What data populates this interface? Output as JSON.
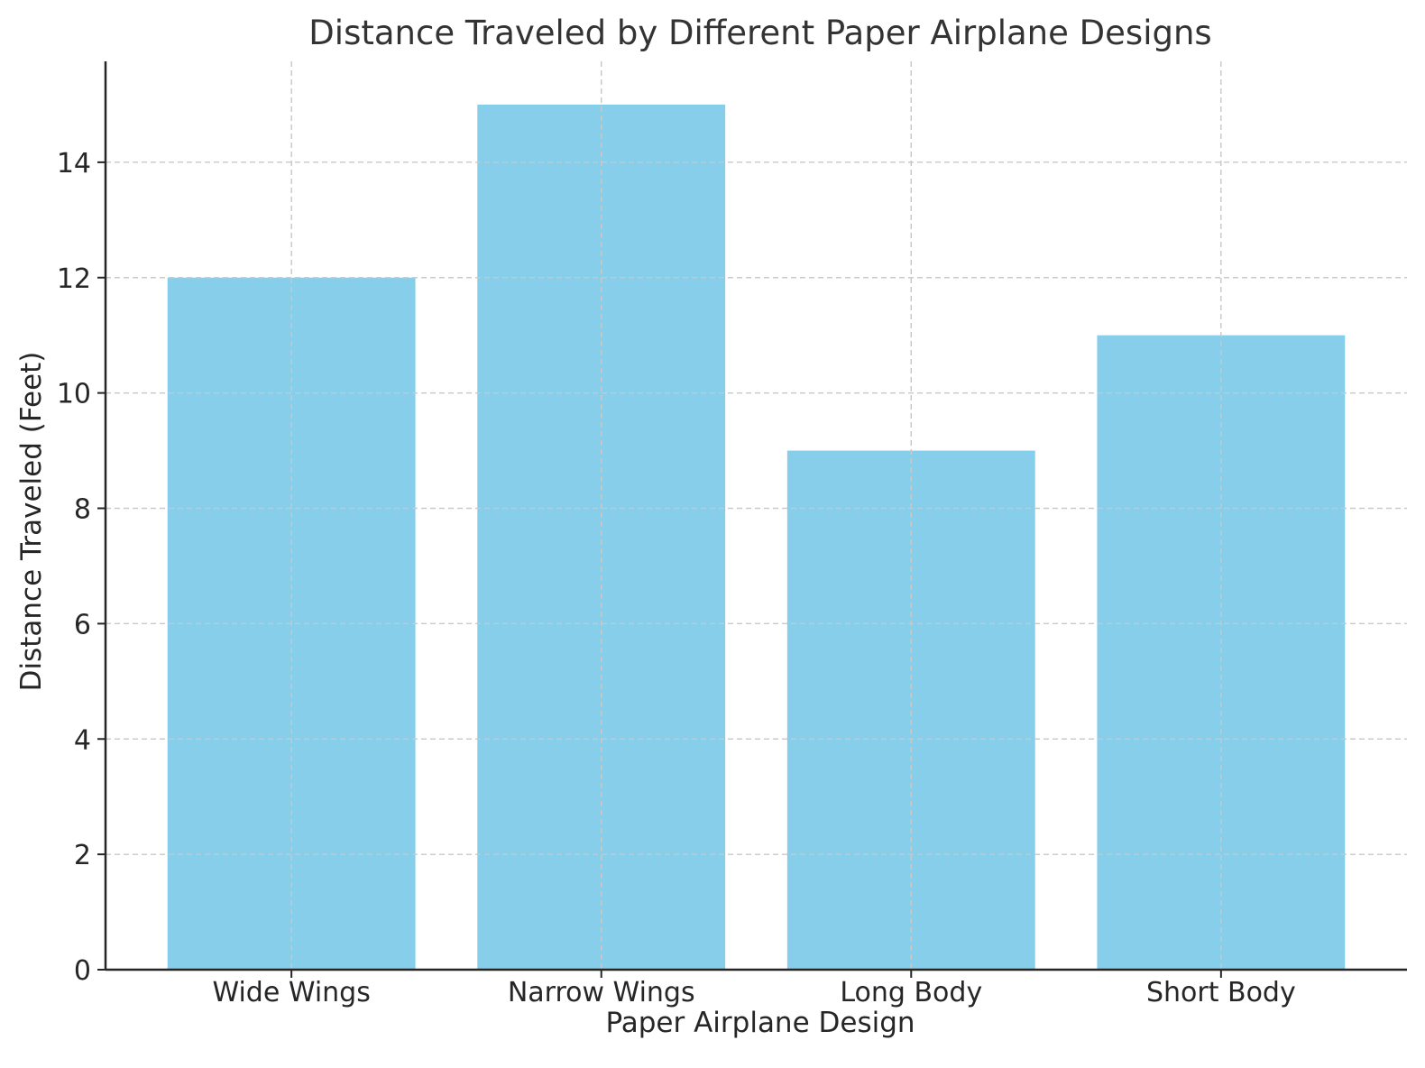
{
  "chart_data": {
    "type": "bar",
    "title": "Distance Traveled by Different Paper Airplane Designs",
    "xlabel": "Paper Airplane Design",
    "ylabel": "Distance Traveled (Feet)",
    "categories": [
      "Wide Wings",
      "Narrow Wings",
      "Long Body",
      "Short Body"
    ],
    "values": [
      12,
      15,
      9,
      11
    ],
    "ylim": [
      0,
      15.75
    ],
    "yticks": [
      "0",
      "2",
      "4",
      "6",
      "8",
      "10",
      "12",
      "14"
    ],
    "grid": true,
    "bar_color": "#87CEEB",
    "grid_color": "#c8c8c8",
    "axis_color": "#262626"
  }
}
